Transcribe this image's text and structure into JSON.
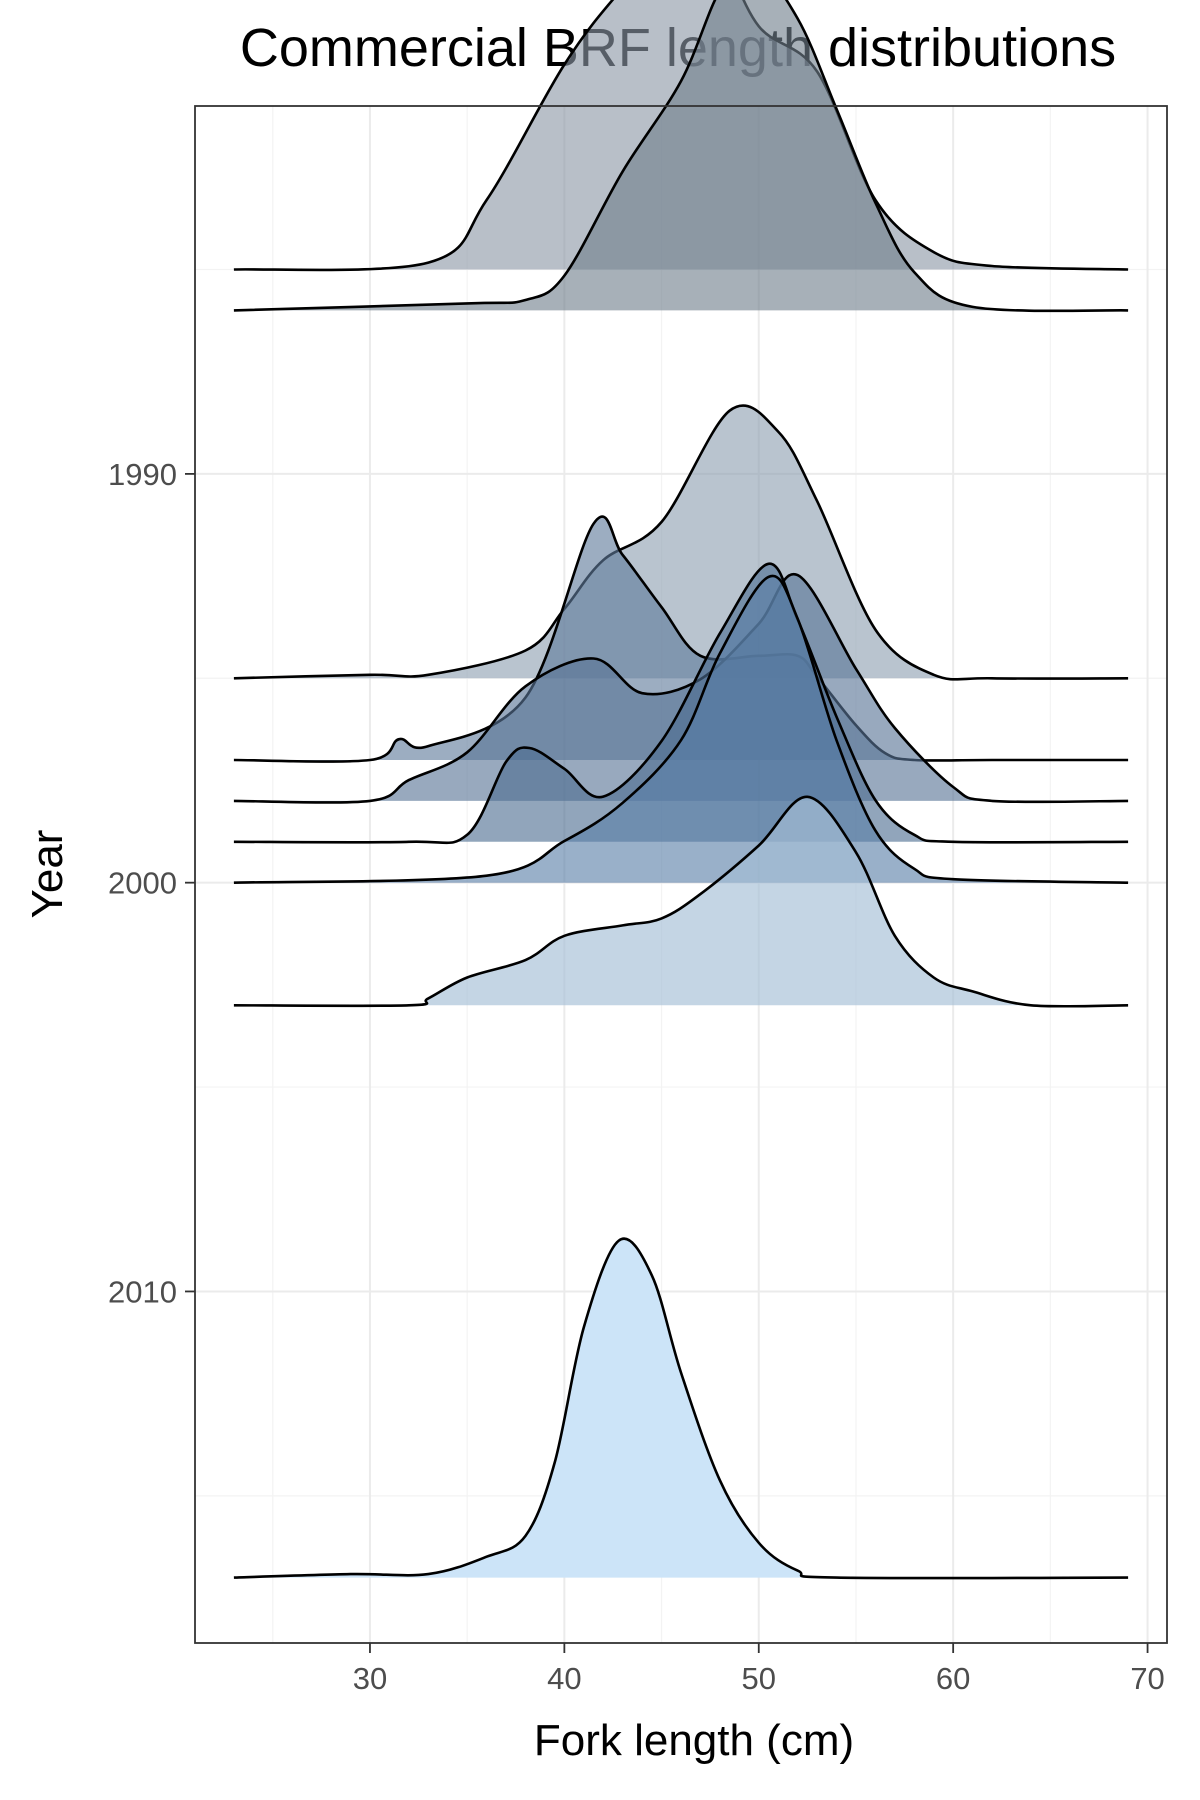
{
  "chart_data": {
    "type": "ridgeline",
    "title": "Commercial BRF length distributions",
    "xlabel": "Fork length (cm)",
    "ylabel": "Year",
    "xlim": [
      21,
      71
    ],
    "ylim": [
      2018.6,
      1981
    ],
    "x_ticks": [
      30,
      40,
      50,
      60,
      70
    ],
    "y_ticks": [
      1990,
      2000,
      2010
    ],
    "grid": true,
    "x_range": [
      23,
      69
    ],
    "ridge_unit_years": 8.5,
    "colors": {
      "fill_light": "#cce4f8",
      "fill_dark": "#4a5a6e",
      "outline": "#000000"
    },
    "series": [
      {
        "year": 1985,
        "fill": "#8d98a6",
        "alpha": 0.62,
        "x": [
          23,
          33,
          36,
          40,
          43,
          46.3,
          48,
          50,
          53,
          56,
          59,
          62,
          69
        ],
        "y": [
          0,
          0.02,
          0.2,
          0.59,
          0.81,
          1.0,
          0.92,
          0.7,
          0.57,
          0.2,
          0.05,
          0.01,
          0
        ]
      },
      {
        "year": 1986,
        "fill": "#717f8c",
        "alpha": 0.62,
        "x": [
          23,
          35,
          38,
          40,
          43,
          46,
          48,
          49.7,
          52,
          54,
          56,
          58,
          61,
          69
        ],
        "y": [
          0,
          0.02,
          0.03,
          0.1,
          0.4,
          0.66,
          0.92,
          1.0,
          0.84,
          0.58,
          0.31,
          0.11,
          0.01,
          0
        ]
      },
      {
        "year": 1995,
        "fill": "#8e9fb2",
        "alpha": 0.62,
        "x": [
          23,
          30,
          33,
          38,
          40,
          42,
          45,
          48.5,
          51,
          53,
          56,
          59,
          62,
          69
        ],
        "y": [
          0,
          0.01,
          0.01,
          0.08,
          0.2,
          0.34,
          0.45,
          0.77,
          0.71,
          0.51,
          0.14,
          0.01,
          0,
          0
        ]
      },
      {
        "year": 1997,
        "fill": "#607b9b",
        "alpha": 0.62,
        "x": [
          23,
          30,
          31.5,
          33,
          38,
          41.5,
          43,
          45,
          47,
          50,
          52,
          53,
          55,
          56.5,
          58,
          62,
          69
        ],
        "y": [
          0,
          0,
          0.06,
          0.04,
          0.18,
          0.68,
          0.59,
          0.44,
          0.3,
          0.3,
          0.3,
          0.24,
          0.1,
          0.02,
          0,
          0,
          0
        ]
      },
      {
        "year": 1998,
        "fill": "#587596",
        "alpha": 0.62,
        "x": [
          23,
          30,
          32,
          35,
          38,
          41.5,
          44,
          47,
          50,
          52,
          55,
          57,
          60,
          62,
          69
        ],
        "y": [
          0,
          0,
          0.06,
          0.14,
          0.33,
          0.41,
          0.31,
          0.35,
          0.51,
          0.65,
          0.38,
          0.21,
          0.04,
          0,
          0
        ]
      },
      {
        "year": 1999,
        "fill": "#4d6e92",
        "alpha": 0.62,
        "x": [
          23,
          32,
          35,
          37,
          38.2,
          40,
          42,
          45,
          48,
          50.5,
          52,
          54,
          56,
          58,
          60,
          69
        ],
        "y": [
          0,
          0,
          0.02,
          0.23,
          0.27,
          0.21,
          0.13,
          0.29,
          0.6,
          0.8,
          0.64,
          0.36,
          0.12,
          0.02,
          0,
          0
        ]
      },
      {
        "year": 2000,
        "fill": "#5a7fa8",
        "alpha": 0.62,
        "x": [
          23,
          36,
          40,
          43,
          46,
          48,
          50.5,
          52,
          54,
          56,
          58,
          60,
          69
        ],
        "y": [
          0,
          0.02,
          0.12,
          0.23,
          0.41,
          0.66,
          0.88,
          0.76,
          0.41,
          0.15,
          0.04,
          0.01,
          0
        ]
      },
      {
        "year": 2003,
        "fill": "#a4bfd6",
        "alpha": 0.65,
        "x": [
          23,
          32,
          33,
          35,
          38,
          40,
          43,
          45,
          47,
          50,
          52.5,
          55,
          57,
          59,
          61,
          64,
          69
        ],
        "y": [
          0,
          0,
          0.02,
          0.08,
          0.13,
          0.2,
          0.23,
          0.25,
          0.32,
          0.46,
          0.6,
          0.44,
          0.2,
          0.08,
          0.04,
          0,
          0
        ]
      },
      {
        "year": 2017,
        "fill": "#cce4f8",
        "alpha": 1.0,
        "x": [
          23,
          29,
          33,
          36,
          38,
          39.5,
          41,
          42.8,
          44.5,
          46,
          48,
          50,
          52,
          54,
          69
        ],
        "y": [
          0,
          0.01,
          0.01,
          0.06,
          0.12,
          0.33,
          0.72,
          0.97,
          0.87,
          0.59,
          0.28,
          0.1,
          0.02,
          0,
          0
        ]
      }
    ]
  }
}
